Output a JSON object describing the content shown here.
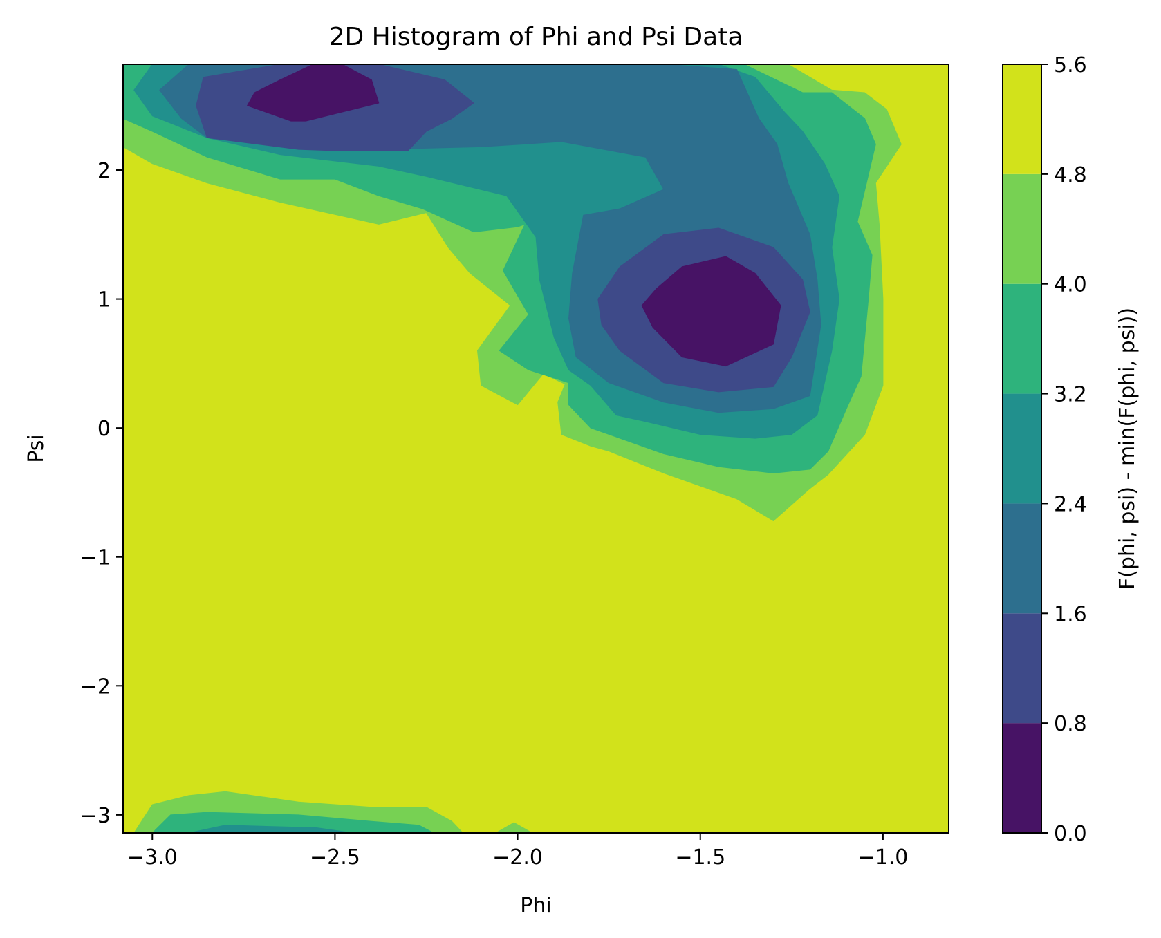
{
  "chart_data": {
    "type": "contourf",
    "title": "2D Histogram of Phi and Psi Data",
    "xlabel": "Phi",
    "ylabel": "Psi",
    "xlim": [
      -3.08,
      -0.82
    ],
    "ylim": [
      -3.14,
      2.82
    ],
    "xticks": [
      -3.0,
      -2.5,
      -2.0,
      -1.5,
      -1.0
    ],
    "xtick_labels": [
      "−3.0",
      "−2.5",
      "−2.0",
      "−1.5",
      "−1.0"
    ],
    "yticks": [
      -3,
      -2,
      -1,
      0,
      1,
      2
    ],
    "ytick_labels": [
      "−3",
      "−2",
      "−1",
      "0",
      "1",
      "2"
    ],
    "colorbar": {
      "label": "F(phi, psi) - min(F(phi, psi))",
      "levels": [
        0.0,
        0.8,
        1.6,
        2.4,
        3.2,
        4.0,
        4.8,
        5.6
      ],
      "level_labels": [
        "0.0",
        "0.8",
        "1.6",
        "2.4",
        "3.2",
        "4.0",
        "4.8",
        "5.6"
      ],
      "colors": [
        "#471365",
        "#3e4a89",
        "#2d6f8e",
        "#21908d",
        "#2eb37c",
        "#77d153",
        "#d2e21b"
      ]
    },
    "background_level": 6,
    "regions": [
      {
        "level": 5,
        "points": [
          [
            -3.08,
            2.44
          ],
          [
            -3.08,
            2.82
          ],
          [
            -2.35,
            2.82
          ],
          [
            -1.6,
            2.82
          ],
          [
            -1.26,
            2.82
          ],
          [
            -1.14,
            2.62
          ],
          [
            -1.05,
            2.6
          ],
          [
            -0.99,
            2.47
          ],
          [
            -0.95,
            2.2
          ],
          [
            -1.02,
            1.9
          ],
          [
            -1.01,
            1.57
          ],
          [
            -1.0,
            1.0
          ],
          [
            -1.0,
            0.33
          ],
          [
            -1.05,
            -0.05
          ],
          [
            -1.15,
            -0.36
          ],
          [
            -1.2,
            -0.47
          ],
          [
            -1.3,
            -0.72
          ],
          [
            -1.4,
            -0.55
          ],
          [
            -1.6,
            -0.35
          ],
          [
            -1.75,
            -0.18
          ],
          [
            -1.8,
            -0.14
          ],
          [
            -1.88,
            -0.05
          ],
          [
            -1.89,
            0.2
          ],
          [
            -1.87,
            0.34
          ],
          [
            -1.93,
            0.42
          ],
          [
            -2.0,
            0.18
          ],
          [
            -2.1,
            0.33
          ],
          [
            -2.11,
            0.6
          ],
          [
            -2.02,
            0.95
          ],
          [
            -2.13,
            1.2
          ],
          [
            -2.19,
            1.4
          ],
          [
            -2.25,
            1.67
          ],
          [
            -2.38,
            1.58
          ],
          [
            -2.65,
            1.75
          ],
          [
            -2.85,
            1.9
          ],
          [
            -3.0,
            2.05
          ],
          [
            -3.08,
            2.18
          ]
        ]
      },
      {
        "level": 4,
        "points": [
          [
            -3.08,
            2.55
          ],
          [
            -3.08,
            2.82
          ],
          [
            -2.35,
            2.82
          ],
          [
            -1.6,
            2.82
          ],
          [
            -1.38,
            2.82
          ],
          [
            -1.22,
            2.6
          ],
          [
            -1.14,
            2.6
          ],
          [
            -1.05,
            2.4
          ],
          [
            -1.02,
            2.2
          ],
          [
            -1.07,
            1.6
          ],
          [
            -1.03,
            1.34
          ],
          [
            -1.04,
            1.0
          ],
          [
            -1.06,
            0.4
          ],
          [
            -1.1,
            0.15
          ],
          [
            -1.15,
            -0.18
          ],
          [
            -1.2,
            -0.32
          ],
          [
            -1.3,
            -0.35
          ],
          [
            -1.45,
            -0.3
          ],
          [
            -1.6,
            -0.2
          ],
          [
            -1.7,
            -0.1
          ],
          [
            -1.8,
            0.0
          ],
          [
            -1.86,
            0.18
          ],
          [
            -1.86,
            0.35
          ],
          [
            -1.97,
            0.45
          ],
          [
            -2.05,
            0.6
          ],
          [
            -1.97,
            0.88
          ],
          [
            -2.04,
            1.22
          ],
          [
            -1.98,
            1.58
          ],
          [
            -2.0,
            1.56
          ],
          [
            -2.12,
            1.52
          ],
          [
            -2.26,
            1.7
          ],
          [
            -2.38,
            1.8
          ],
          [
            -2.5,
            1.93
          ],
          [
            -2.65,
            1.93
          ],
          [
            -2.85,
            2.1
          ],
          [
            -3.0,
            2.3
          ],
          [
            -3.08,
            2.4
          ]
        ]
      },
      {
        "level": 3,
        "points": [
          [
            -3.05,
            2.62
          ],
          [
            -3.0,
            2.82
          ],
          [
            -1.6,
            2.82
          ],
          [
            -1.45,
            2.82
          ],
          [
            -1.35,
            2.72
          ],
          [
            -1.27,
            2.45
          ],
          [
            -1.22,
            2.3
          ],
          [
            -1.16,
            2.05
          ],
          [
            -1.12,
            1.8
          ],
          [
            -1.14,
            1.4
          ],
          [
            -1.12,
            1.0
          ],
          [
            -1.14,
            0.6
          ],
          [
            -1.18,
            0.1
          ],
          [
            -1.25,
            -0.05
          ],
          [
            -1.35,
            -0.08
          ],
          [
            -1.5,
            -0.05
          ],
          [
            -1.65,
            0.05
          ],
          [
            -1.73,
            0.1
          ],
          [
            -1.8,
            0.33
          ],
          [
            -1.86,
            0.45
          ],
          [
            -1.9,
            0.7
          ],
          [
            -1.94,
            1.15
          ],
          [
            -1.95,
            1.48
          ],
          [
            -2.03,
            1.8
          ],
          [
            -2.25,
            1.95
          ],
          [
            -2.38,
            2.03
          ],
          [
            -2.65,
            2.12
          ],
          [
            -2.85,
            2.25
          ],
          [
            -3.0,
            2.42
          ]
        ]
      },
      {
        "level": 2,
        "points": [
          [
            -2.98,
            2.62
          ],
          [
            -2.9,
            2.82
          ],
          [
            -1.6,
            2.82
          ],
          [
            -1.4,
            2.78
          ],
          [
            -1.34,
            2.4
          ],
          [
            -1.29,
            2.2
          ],
          [
            -1.26,
            1.9
          ],
          [
            -1.2,
            1.5
          ],
          [
            -1.18,
            1.15
          ],
          [
            -1.17,
            0.8
          ],
          [
            -1.2,
            0.25
          ],
          [
            -1.3,
            0.15
          ],
          [
            -1.45,
            0.12
          ],
          [
            -1.6,
            0.2
          ],
          [
            -1.75,
            0.35
          ],
          [
            -1.84,
            0.55
          ],
          [
            -1.86,
            0.85
          ],
          [
            -1.85,
            1.2
          ],
          [
            -1.82,
            1.65
          ],
          [
            -1.72,
            1.7
          ],
          [
            -1.6,
            1.85
          ],
          [
            -1.65,
            2.1
          ],
          [
            -1.88,
            2.22
          ],
          [
            -2.1,
            2.18
          ],
          [
            -2.38,
            2.16
          ],
          [
            -2.55,
            2.2
          ],
          [
            -2.85,
            2.25
          ],
          [
            -2.92,
            2.4
          ]
        ]
      },
      {
        "level": 1,
        "points": [
          [
            -2.88,
            2.5
          ],
          [
            -2.86,
            2.72
          ],
          [
            -2.65,
            2.82
          ],
          [
            -2.38,
            2.82
          ],
          [
            -2.2,
            2.7
          ],
          [
            -2.12,
            2.52
          ],
          [
            -2.18,
            2.4
          ],
          [
            -2.25,
            2.3
          ],
          [
            -2.3,
            2.15
          ],
          [
            -2.5,
            2.15
          ],
          [
            -2.6,
            2.16
          ],
          [
            -2.85,
            2.25
          ]
        ]
      },
      {
        "level": 1,
        "points": [
          [
            -1.78,
            1.0
          ],
          [
            -1.72,
            1.25
          ],
          [
            -1.6,
            1.5
          ],
          [
            -1.45,
            1.55
          ],
          [
            -1.3,
            1.4
          ],
          [
            -1.22,
            1.15
          ],
          [
            -1.2,
            0.9
          ],
          [
            -1.25,
            0.55
          ],
          [
            -1.3,
            0.32
          ],
          [
            -1.45,
            0.28
          ],
          [
            -1.6,
            0.35
          ],
          [
            -1.72,
            0.6
          ],
          [
            -1.77,
            0.8
          ]
        ]
      },
      {
        "level": 0,
        "points": [
          [
            -2.74,
            2.5
          ],
          [
            -2.72,
            2.6
          ],
          [
            -2.65,
            2.7
          ],
          [
            -2.56,
            2.82
          ],
          [
            -2.48,
            2.82
          ],
          [
            -2.4,
            2.7
          ],
          [
            -2.38,
            2.52
          ],
          [
            -2.48,
            2.45
          ],
          [
            -2.58,
            2.38
          ],
          [
            -2.62,
            2.38
          ]
        ]
      },
      {
        "level": 0,
        "points": [
          [
            -1.66,
            0.95
          ],
          [
            -1.62,
            1.08
          ],
          [
            -1.55,
            1.25
          ],
          [
            -1.43,
            1.33
          ],
          [
            -1.35,
            1.2
          ],
          [
            -1.28,
            0.95
          ],
          [
            -1.3,
            0.65
          ],
          [
            -1.43,
            0.48
          ],
          [
            -1.55,
            0.55
          ],
          [
            -1.63,
            0.78
          ]
        ]
      },
      {
        "level": 5,
        "points": [
          [
            -3.05,
            -3.14
          ],
          [
            -3.0,
            -2.92
          ],
          [
            -2.9,
            -2.85
          ],
          [
            -2.8,
            -2.82
          ],
          [
            -2.6,
            -2.9
          ],
          [
            -2.4,
            -2.94
          ],
          [
            -2.25,
            -2.94
          ],
          [
            -2.18,
            -3.05
          ],
          [
            -2.15,
            -3.14
          ]
        ]
      },
      {
        "level": 4,
        "points": [
          [
            -3.0,
            -3.14
          ],
          [
            -2.95,
            -3.0
          ],
          [
            -2.85,
            -2.98
          ],
          [
            -2.6,
            -3.0
          ],
          [
            -2.4,
            -3.05
          ],
          [
            -2.27,
            -3.08
          ],
          [
            -2.23,
            -3.14
          ]
        ]
      },
      {
        "level": 3,
        "points": [
          [
            -2.9,
            -3.14
          ],
          [
            -2.8,
            -3.08
          ],
          [
            -2.55,
            -3.1
          ],
          [
            -2.45,
            -3.14
          ]
        ]
      },
      {
        "level": 5,
        "points": [
          [
            -2.06,
            -3.14
          ],
          [
            -2.01,
            -3.06
          ],
          [
            -1.96,
            -3.14
          ]
        ]
      }
    ]
  }
}
